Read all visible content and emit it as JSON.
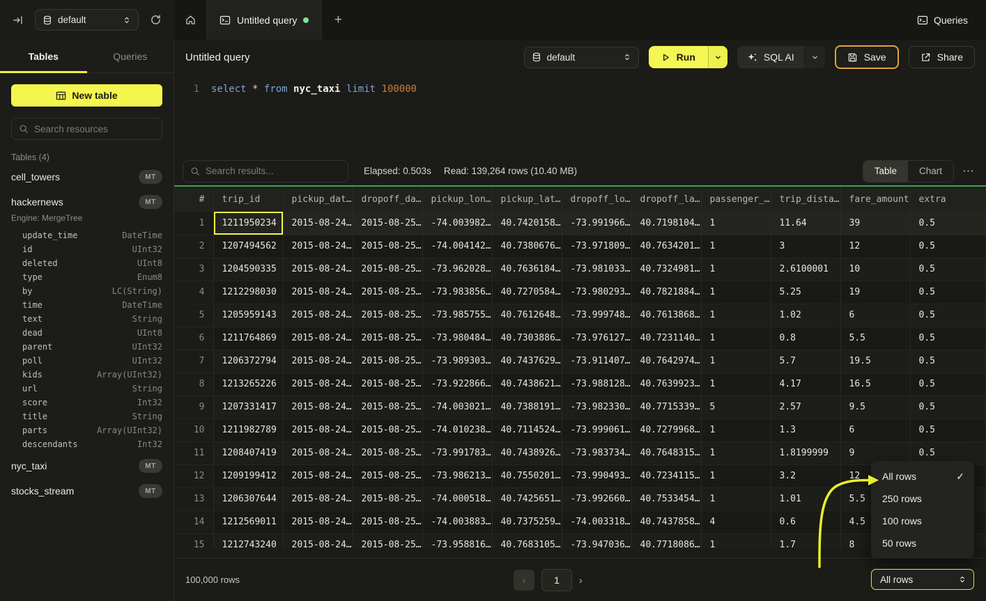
{
  "colors": {
    "accent_yellow": "#f4f652",
    "save_border_orange": "#e2a23b",
    "results_divider_green": "#3ea04e",
    "tab_dot_green": "#84e08d",
    "keyword_blue": "#7aa3d2",
    "number_orange": "#cd7e3e",
    "annotation_yellow": "#e9ef2b"
  },
  "topbar": {
    "database": "default",
    "tab_title": "Untitled query",
    "queries_label": "Queries"
  },
  "sidebar": {
    "tab_tables": "Tables",
    "tab_queries": "Queries",
    "new_table_label": "New table",
    "search_placeholder": "Search resources",
    "section_label": "Tables (4)",
    "tables": [
      {
        "name": "cell_towers",
        "badge": "MT"
      },
      {
        "name": "hackernews",
        "badge": "MT",
        "engine": "Engine: MergeTree"
      },
      {
        "name": "nyc_taxi",
        "badge": "MT"
      },
      {
        "name": "stocks_stream",
        "badge": "MT"
      }
    ],
    "schema": [
      {
        "name": "update_time",
        "type": "DateTime"
      },
      {
        "name": "id",
        "type": "UInt32"
      },
      {
        "name": "deleted",
        "type": "UInt8"
      },
      {
        "name": "type",
        "type": "Enum8"
      },
      {
        "name": "by",
        "type": "LC(String)"
      },
      {
        "name": "time",
        "type": "DateTime"
      },
      {
        "name": "text",
        "type": "String"
      },
      {
        "name": "dead",
        "type": "UInt8"
      },
      {
        "name": "parent",
        "type": "UInt32"
      },
      {
        "name": "poll",
        "type": "UInt32"
      },
      {
        "name": "kids",
        "type": "Array(UInt32)"
      },
      {
        "name": "url",
        "type": "String"
      },
      {
        "name": "score",
        "type": "Int32"
      },
      {
        "name": "title",
        "type": "String"
      },
      {
        "name": "parts",
        "type": "Array(UInt32)"
      },
      {
        "name": "descendants",
        "type": "Int32"
      }
    ]
  },
  "toolbar": {
    "title": "Untitled query",
    "database": "default",
    "run_label": "Run",
    "sql_ai_label": "SQL AI",
    "save_label": "Save",
    "share_label": "Share"
  },
  "editor": {
    "line_number": "1",
    "tokens": [
      {
        "t": "select",
        "c": "kw"
      },
      {
        "t": " ",
        "c": "pl"
      },
      {
        "t": "*",
        "c": "pl"
      },
      {
        "t": " ",
        "c": "pl"
      },
      {
        "t": "from",
        "c": "kw"
      },
      {
        "t": " ",
        "c": "pl"
      },
      {
        "t": "nyc_taxi",
        "c": "ident"
      },
      {
        "t": " ",
        "c": "pl"
      },
      {
        "t": "limit",
        "c": "kw"
      },
      {
        "t": " ",
        "c": "pl"
      },
      {
        "t": "100000",
        "c": "num"
      }
    ]
  },
  "results_bar": {
    "search_placeholder": "Search results...",
    "elapsed": "Elapsed: 0.503s",
    "read": "Read: 139,264 rows (10.40 MB)",
    "view_table": "Table",
    "view_chart": "Chart",
    "more": "⋯"
  },
  "table": {
    "headers": [
      "#",
      "trip_id",
      "pickup_dat…",
      "dropoff_da…",
      "pickup_lon…",
      "pickup_lat…",
      "dropoff_lo…",
      "dropoff_la…",
      "passenger_…",
      "trip_dista…",
      "fare_amount",
      "extra"
    ],
    "selected_cell": {
      "row": 0,
      "col": 1
    },
    "rows": [
      [
        "1",
        "1211950234",
        "2015-08-24…",
        "2015-08-25…",
        "-74.003982…",
        "40.7420158…",
        "-73.991966…",
        "40.7198104…",
        "1",
        "11.64",
        "39",
        "0.5"
      ],
      [
        "2",
        "1207494562",
        "2015-08-24…",
        "2015-08-25…",
        "-74.004142…",
        "40.7380676…",
        "-73.971809…",
        "40.7634201…",
        "1",
        "3",
        "12",
        "0.5"
      ],
      [
        "3",
        "1204590335",
        "2015-08-24…",
        "2015-08-25…",
        "-73.962028…",
        "40.7636184…",
        "-73.981033…",
        "40.7324981…",
        "1",
        "2.6100001",
        "10",
        "0.5"
      ],
      [
        "4",
        "1212298030",
        "2015-08-24…",
        "2015-08-25…",
        "-73.983856…",
        "40.7270584…",
        "-73.980293…",
        "40.7821884…",
        "1",
        "5.25",
        "19",
        "0.5"
      ],
      [
        "5",
        "1205959143",
        "2015-08-24…",
        "2015-08-25…",
        "-73.985755…",
        "40.7612648…",
        "-73.999748…",
        "40.7613868…",
        "1",
        "1.02",
        "6",
        "0.5"
      ],
      [
        "6",
        "1211764869",
        "2015-08-24…",
        "2015-08-25…",
        "-73.980484…",
        "40.7303886…",
        "-73.976127…",
        "40.7231140…",
        "1",
        "0.8",
        "5.5",
        "0.5"
      ],
      [
        "7",
        "1206372794",
        "2015-08-24…",
        "2015-08-25…",
        "-73.989303…",
        "40.7437629…",
        "-73.911407…",
        "40.7642974…",
        "1",
        "5.7",
        "19.5",
        "0.5"
      ],
      [
        "8",
        "1213265226",
        "2015-08-24…",
        "2015-08-25…",
        "-73.922866…",
        "40.7438621…",
        "-73.988128…",
        "40.7639923…",
        "1",
        "4.17",
        "16.5",
        "0.5"
      ],
      [
        "9",
        "1207331417",
        "2015-08-24…",
        "2015-08-25…",
        "-74.003021…",
        "40.7388191…",
        "-73.982330…",
        "40.7715339…",
        "5",
        "2.57",
        "9.5",
        "0.5"
      ],
      [
        "10",
        "1211982789",
        "2015-08-24…",
        "2015-08-25…",
        "-74.010238…",
        "40.7114524…",
        "-73.999061…",
        "40.7279968…",
        "1",
        "1.3",
        "6",
        "0.5"
      ],
      [
        "11",
        "1208407419",
        "2015-08-24…",
        "2015-08-25…",
        "-73.991783…",
        "40.7438926…",
        "-73.983734…",
        "40.7648315…",
        "1",
        "1.8199999",
        "9",
        "0.5"
      ],
      [
        "12",
        "1209199412",
        "2015-08-24…",
        "2015-08-25…",
        "-73.986213…",
        "40.7550201…",
        "-73.990493…",
        "40.7234115…",
        "1",
        "3.2",
        "12",
        "0.5"
      ],
      [
        "13",
        "1206307644",
        "2015-08-24…",
        "2015-08-25…",
        "-74.000518…",
        "40.7425651…",
        "-73.992660…",
        "40.7533454…",
        "1",
        "1.01",
        "5.5",
        "0.5"
      ],
      [
        "14",
        "1212569011",
        "2015-08-24…",
        "2015-08-25…",
        "-74.003883…",
        "40.7375259…",
        "-74.003318…",
        "40.7437858…",
        "4",
        "0.6",
        "4.5",
        "0.5"
      ],
      [
        "15",
        "1212743240",
        "2015-08-24…",
        "2015-08-25…",
        "-73.958816…",
        "40.7683105…",
        "-73.947036…",
        "40.7718086…",
        "1",
        "1.7",
        "8",
        "0.5"
      ]
    ]
  },
  "footer": {
    "total": "100,000 rows",
    "page": "1"
  },
  "rows_menu": {
    "select_value": "All rows",
    "items": [
      {
        "label": "All rows",
        "checked": true
      },
      {
        "label": "250 rows",
        "checked": false
      },
      {
        "label": "100 rows",
        "checked": false
      },
      {
        "label": "50 rows",
        "checked": false
      }
    ]
  }
}
